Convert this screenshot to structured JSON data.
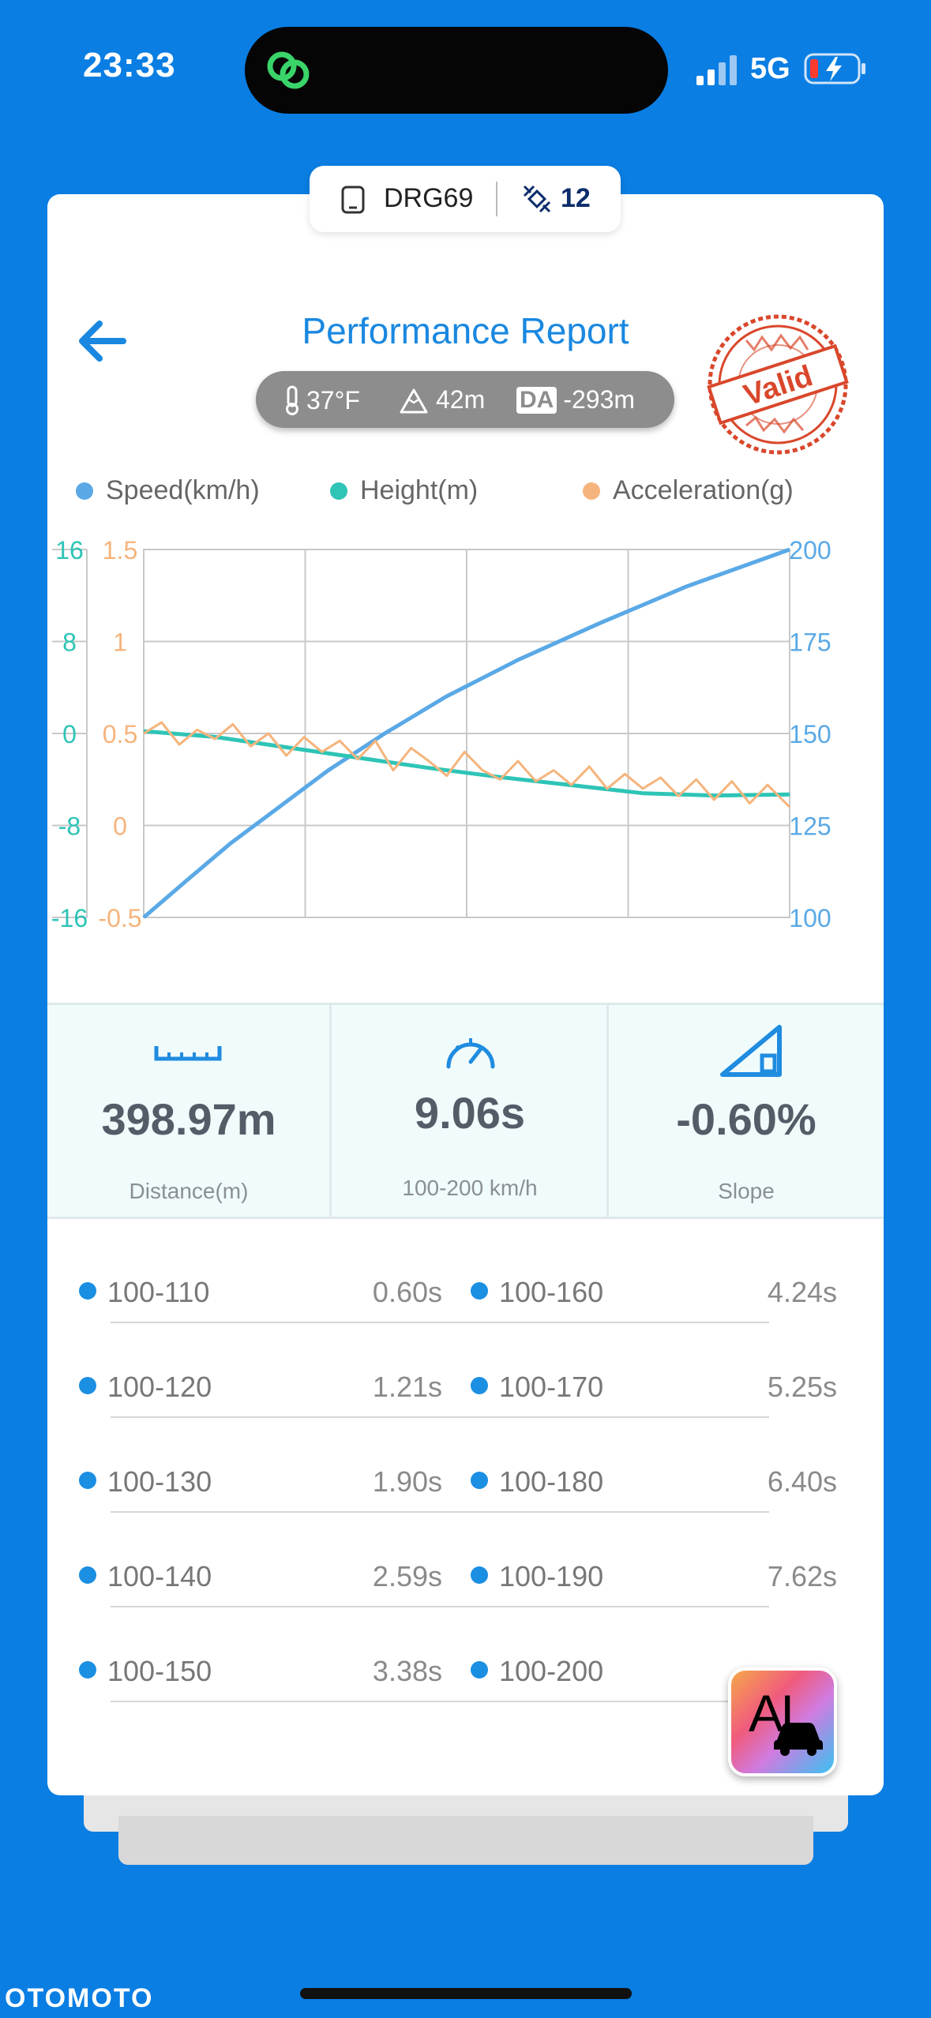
{
  "status_bar": {
    "time": "23:33",
    "network": "5G"
  },
  "device_tab": {
    "name": "DRG69",
    "satellites": "12"
  },
  "header": {
    "title": "Performance Report",
    "temperature": "37°F",
    "altitude": "42m",
    "da_label": "DA",
    "density_altitude": "-293m",
    "stamp_text": "Valid"
  },
  "legend": [
    {
      "label": "Speed(km/h)",
      "color": "#5aa9e6"
    },
    {
      "label": "Height(m)",
      "color": "#2ec4b6"
    },
    {
      "label": "Acceleration(g)",
      "color": "#f5b47c"
    }
  ],
  "chart_data": {
    "type": "line",
    "axes": {
      "height_left": {
        "ticks": [
          "16",
          "8",
          "0",
          "-8",
          "-16"
        ],
        "range": [
          -16,
          16
        ],
        "color": "#2ec4b6"
      },
      "acceleration_left": {
        "ticks": [
          "1.5",
          "1",
          "0.5",
          "0",
          "-0.5"
        ],
        "range": [
          -0.5,
          1.5
        ],
        "color": "#f5b47c"
      },
      "speed_right": {
        "ticks": [
          "200",
          "175",
          "150",
          "125",
          "100"
        ],
        "range": [
          100,
          200
        ],
        "color": "#5aa9e6"
      }
    },
    "x_range": [
      0,
      9.06
    ],
    "grid": true,
    "series": [
      {
        "name": "Speed(km/h)",
        "axis": "speed_right",
        "x": [
          0,
          0.6,
          1.21,
          1.9,
          2.59,
          3.38,
          4.24,
          5.25,
          6.4,
          7.62,
          9.06
        ],
        "values": [
          100,
          110,
          120,
          130,
          140,
          150,
          160,
          170,
          180,
          190,
          200
        ]
      },
      {
        "name": "Height(m)",
        "axis": "height_left",
        "x": [
          0,
          1,
          2,
          3,
          4,
          5,
          6,
          7,
          8,
          9.06
        ],
        "values": [
          0.2,
          -0.3,
          -1.2,
          -2.1,
          -3.0,
          -3.8,
          -4.5,
          -5.2,
          -5.4,
          -5.3
        ]
      },
      {
        "name": "Acceleration(g)",
        "axis": "acceleration_left",
        "x": [
          0,
          0.25,
          0.5,
          0.75,
          1.0,
          1.25,
          1.5,
          1.75,
          2.0,
          2.25,
          2.5,
          2.75,
          3.0,
          3.25,
          3.5,
          3.75,
          4.0,
          4.25,
          4.5,
          4.75,
          5.0,
          5.25,
          5.5,
          5.75,
          6.0,
          6.25,
          6.5,
          6.75,
          7.0,
          7.25,
          7.5,
          7.75,
          8.0,
          8.25,
          8.5,
          8.75,
          9.06
        ],
        "values": [
          0.5,
          0.56,
          0.44,
          0.52,
          0.47,
          0.55,
          0.43,
          0.5,
          0.38,
          0.48,
          0.4,
          0.46,
          0.36,
          0.46,
          0.3,
          0.42,
          0.35,
          0.27,
          0.4,
          0.3,
          0.25,
          0.35,
          0.24,
          0.3,
          0.22,
          0.32,
          0.2,
          0.28,
          0.2,
          0.26,
          0.16,
          0.25,
          0.14,
          0.24,
          0.12,
          0.22,
          0.1
        ]
      }
    ]
  },
  "stats": {
    "distance": {
      "value": "398.97m",
      "label": "Distance(m)"
    },
    "time": {
      "value": "9.06s",
      "label": "100-200 km/h"
    },
    "slope": {
      "value": "-0.60%",
      "label": "Slope"
    }
  },
  "splits": {
    "left": [
      {
        "range": "100-110",
        "time": "0.60s"
      },
      {
        "range": "100-120",
        "time": "1.21s"
      },
      {
        "range": "100-130",
        "time": "1.90s"
      },
      {
        "range": "100-140",
        "time": "2.59s"
      },
      {
        "range": "100-150",
        "time": "3.38s"
      }
    ],
    "right": [
      {
        "range": "100-160",
        "time": "4.24s"
      },
      {
        "range": "100-170",
        "time": "5.25s"
      },
      {
        "range": "100-180",
        "time": "6.40s"
      },
      {
        "range": "100-190",
        "time": "7.62s"
      },
      {
        "range": "100-200",
        "time": ""
      }
    ]
  },
  "ai_button": {
    "label": "AI"
  },
  "watermark": "OTOMOTO",
  "colors": {
    "background": "#0a7ee3",
    "accent": "#1a88e0",
    "stamp": "#d9472b"
  }
}
